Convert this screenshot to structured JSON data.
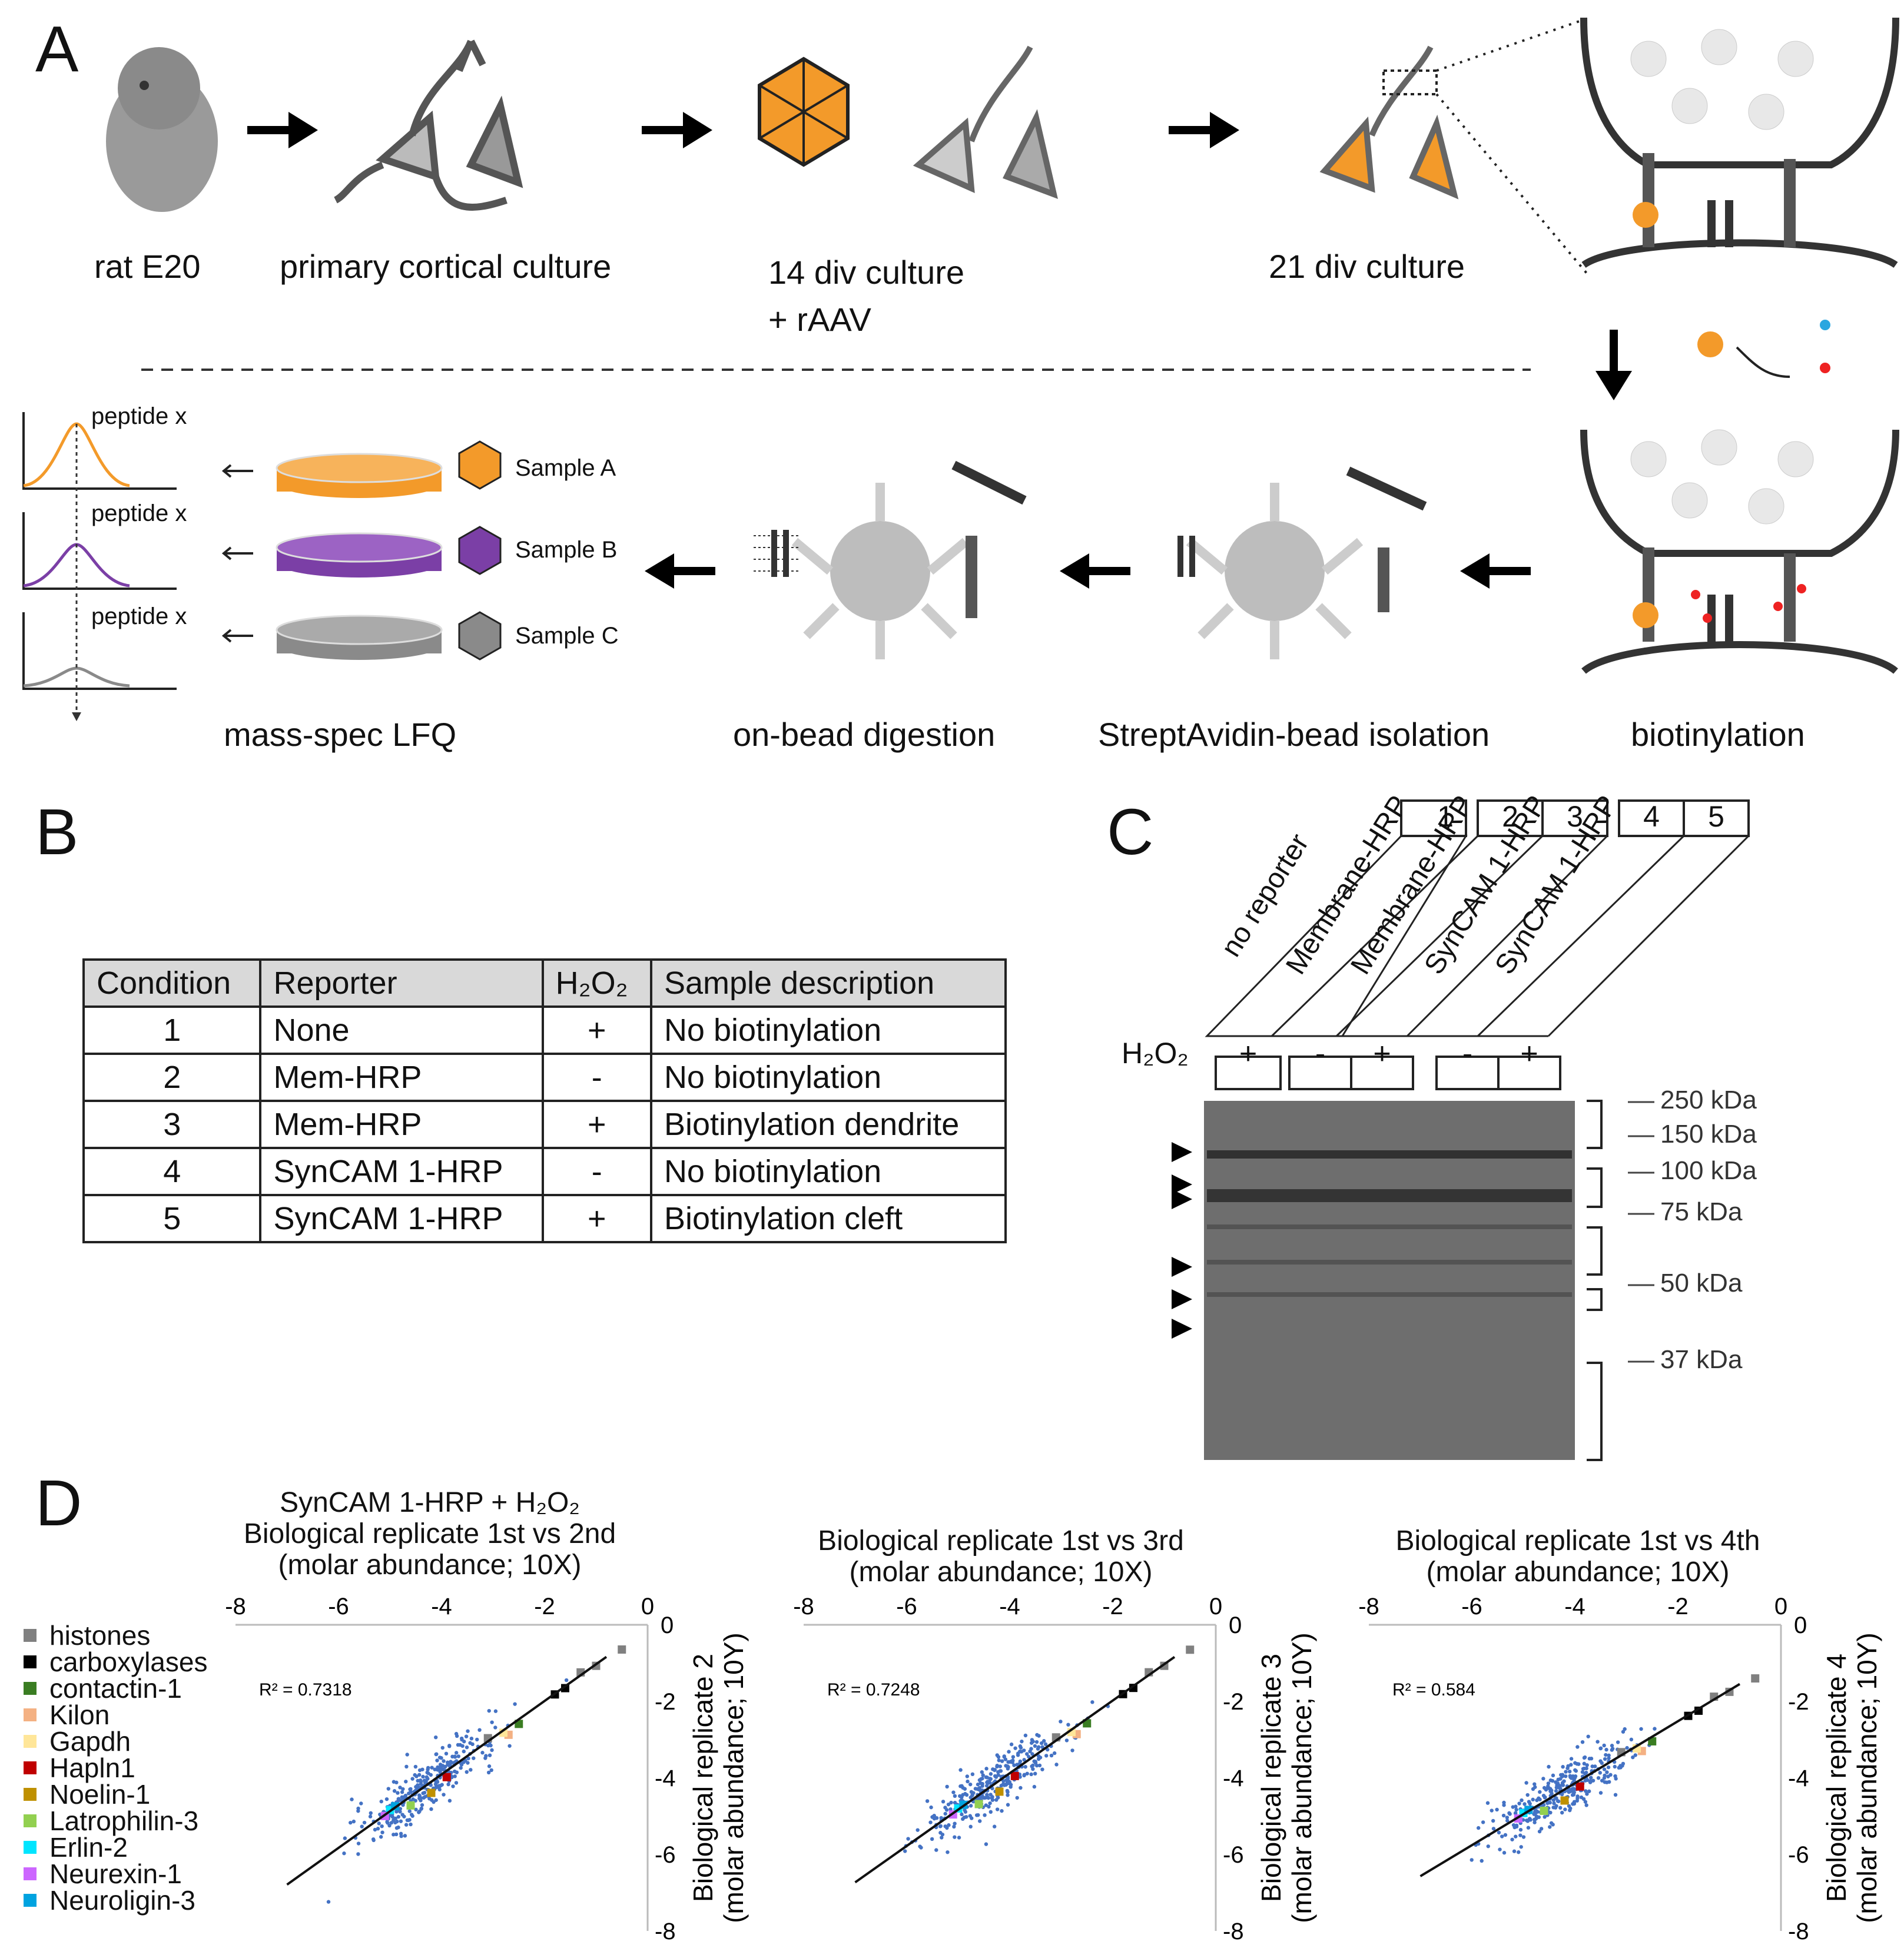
{
  "panels": {
    "A": "A",
    "B": "B",
    "C": "C",
    "D": "D"
  },
  "panelA": {
    "steps_top": [
      "rat E20",
      "primary cortical culture",
      "14 div culture",
      "+ rAAV",
      "21 div culture"
    ],
    "steps_bottom": [
      "mass-spec LFQ",
      "on-bead digestion",
      "StreptAvidin-bead isolation",
      "biotinylation"
    ],
    "peptide_label": "peptide x",
    "samples": [
      "Sample A",
      "Sample B",
      "Sample C"
    ],
    "sample_colors": [
      "#f39a2a",
      "#7b3fa6",
      "#8a8a8a"
    ]
  },
  "panelB": {
    "headers": [
      "Condition",
      "Reporter",
      "H₂O₂",
      "Sample description"
    ],
    "rows": [
      [
        "1",
        "None",
        "+",
        "No biotinylation"
      ],
      [
        "2",
        "Mem-HRP",
        "-",
        "No biotinylation"
      ],
      [
        "3",
        "Mem-HRP",
        "+",
        "Biotinylation dendrite"
      ],
      [
        "4",
        "SynCAM 1-HRP",
        "-",
        "No biotinylation"
      ],
      [
        "5",
        "SynCAM 1-HRP",
        "+",
        "Biotinylation cleft"
      ]
    ]
  },
  "panelC": {
    "lane_numbers": [
      "1",
      "2",
      "3",
      "4",
      "5"
    ],
    "lane_names": [
      "no reporter",
      "Membrane-HRP",
      "Membrane-HRP",
      "SynCAM 1-HRP",
      "SynCAM 1-HRP"
    ],
    "h2o2_label": "H₂O₂",
    "h2o2": [
      "+",
      "-",
      "+",
      "-",
      "+"
    ],
    "markers": [
      "250 kDa",
      "150 kDa",
      "100 kDa",
      "75 kDa",
      "50 kDa",
      "37 kDa"
    ]
  },
  "panelD": {
    "legend": [
      {
        "name": "histones",
        "color": "#808080"
      },
      {
        "name": "carboxylases",
        "color": "#000000"
      },
      {
        "name": "contactin-1",
        "color": "#3a7d22"
      },
      {
        "name": "Kilon",
        "color": "#f4b183"
      },
      {
        "name": "Gapdh",
        "color": "#ffe699"
      },
      {
        "name": "Hapln1",
        "color": "#c00000"
      },
      {
        "name": "Noelin-1",
        "color": "#bf9000"
      },
      {
        "name": "Latrophilin-3",
        "color": "#92d050"
      },
      {
        "name": "Erlin-2",
        "color": "#00e5ff"
      },
      {
        "name": "Neurexin-1",
        "color": "#cc66ff"
      },
      {
        "name": "Neuroligin-3",
        "color": "#00a3e0"
      }
    ],
    "plots": [
      {
        "title1": "SynCAM 1-HRP + H₂O₂",
        "title2": "Biological replicate 1st vs 2nd",
        "title3": "(molar abundance; 10X)",
        "r2": "R² = 0.7318",
        "ylabel1": "Biological replicate 2",
        "ylabel2": "(molar abundance; 10Y)"
      },
      {
        "title1": "",
        "title2": "Biological replicate 1st vs 3rd",
        "title3": "(molar abundance; 10X)",
        "r2": "R² = 0.7248",
        "ylabel1": "Biological replicate 3",
        "ylabel2": "(molar abundance; 10Y)"
      },
      {
        "title1": "",
        "title2": "Biological replicate 1st vs 4th",
        "title3": "(molar abundance; 10X)",
        "r2": "R² = 0.584",
        "ylabel1": "Biological replicate 4",
        "ylabel2": "(molar abundance; 10Y)"
      }
    ],
    "axis_ticks": [
      "-8",
      "-6",
      "-4",
      "-2",
      "0"
    ]
  },
  "chart_data": [
    {
      "type": "scatter",
      "title": "Biological replicate 1st vs 2nd",
      "xlabel": "molar abundance; 10X",
      "ylabel": "Biological replicate 2 (molar abundance; 10Y)",
      "xlim": [
        -8,
        0
      ],
      "ylim": [
        -8,
        0
      ],
      "r2": 0.7318,
      "fit": {
        "slope": 0.96,
        "intercept": -0.07
      }
    },
    {
      "type": "scatter",
      "title": "Biological replicate 1st vs 3rd",
      "xlabel": "molar abundance; 10X",
      "ylabel": "Biological replicate 3 (molar abundance; 10Y)",
      "xlim": [
        -8,
        0
      ],
      "ylim": [
        -8,
        0
      ],
      "r2": 0.7248,
      "fit": {
        "slope": 0.95,
        "intercept": -0.08
      }
    },
    {
      "type": "scatter",
      "title": "Biological replicate 1st vs 4th",
      "xlabel": "molar abundance; 10X",
      "ylabel": "Biological replicate 4 (molar abundance; 10Y)",
      "xlim": [
        -8,
        0
      ],
      "ylim": [
        -8,
        0
      ],
      "r2": 0.584,
      "fit": {
        "slope": 0.81,
        "intercept": -0.9
      }
    }
  ]
}
